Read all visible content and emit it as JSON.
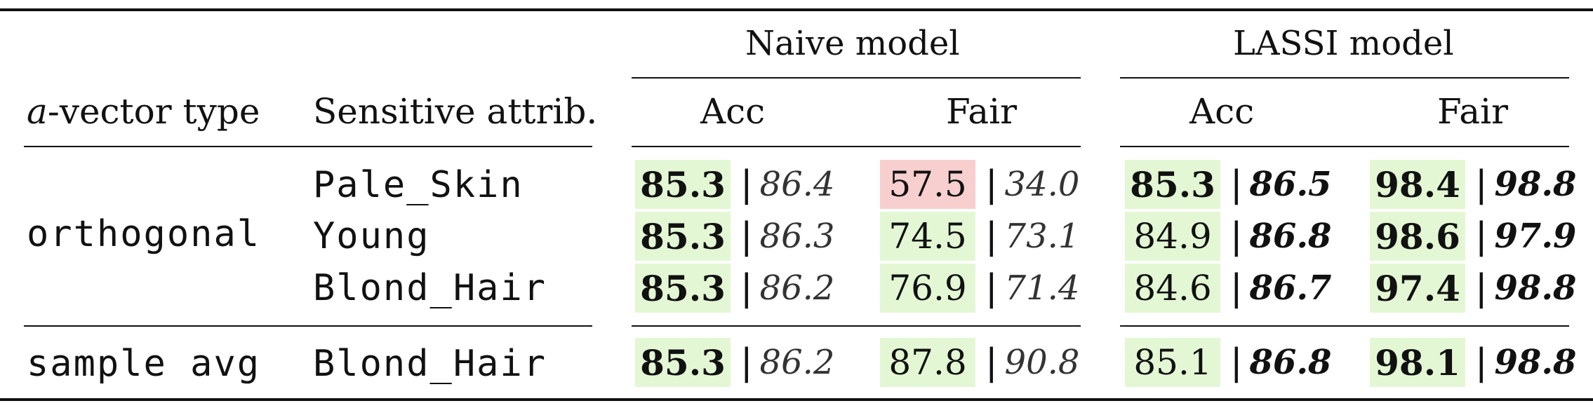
{
  "header": {
    "naive_model": "Naive model",
    "lassi_model": "LASSI model",
    "a_symbol": "a",
    "vector_type_rest": "-vector type",
    "sensitive_attrib": "Sensitive attrib.",
    "acc": "Acc",
    "fair": "Fair"
  },
  "rows": [
    {
      "vector_type": "orthogonal",
      "attrib": "Pale_Skin",
      "naive_acc": {
        "main": "85.3",
        "alt": "86.4"
      },
      "naive_fair": {
        "main": "57.5",
        "alt": "34.0"
      },
      "lassi_acc": {
        "main": "85.3",
        "alt": "86.5"
      },
      "lassi_fair": {
        "main": "98.4",
        "alt": "98.8"
      }
    },
    {
      "vector_type": "",
      "attrib": "Young",
      "naive_acc": {
        "main": "85.3",
        "alt": "86.3"
      },
      "naive_fair": {
        "main": "74.5",
        "alt": "73.1"
      },
      "lassi_acc": {
        "main": "84.9",
        "alt": "86.8"
      },
      "lassi_fair": {
        "main": "98.6",
        "alt": "97.9"
      }
    },
    {
      "vector_type": "",
      "attrib": "Blond_Hair",
      "naive_acc": {
        "main": "85.3",
        "alt": "86.2"
      },
      "naive_fair": {
        "main": "76.9",
        "alt": "71.4"
      },
      "lassi_acc": {
        "main": "84.6",
        "alt": "86.7"
      },
      "lassi_fair": {
        "main": "97.4",
        "alt": "98.8"
      }
    },
    {
      "vector_type": "sample avg",
      "attrib": "Blond_Hair",
      "naive_acc": {
        "main": "85.3",
        "alt": "86.2"
      },
      "naive_fair": {
        "main": "87.8",
        "alt": "90.8"
      },
      "lassi_acc": {
        "main": "85.1",
        "alt": "86.8"
      },
      "lassi_fair": {
        "main": "98.1",
        "alt": "98.8"
      }
    }
  ],
  "colors": {
    "green_highlight": "#e3f7d4",
    "red_highlight": "#f7cfcf"
  }
}
